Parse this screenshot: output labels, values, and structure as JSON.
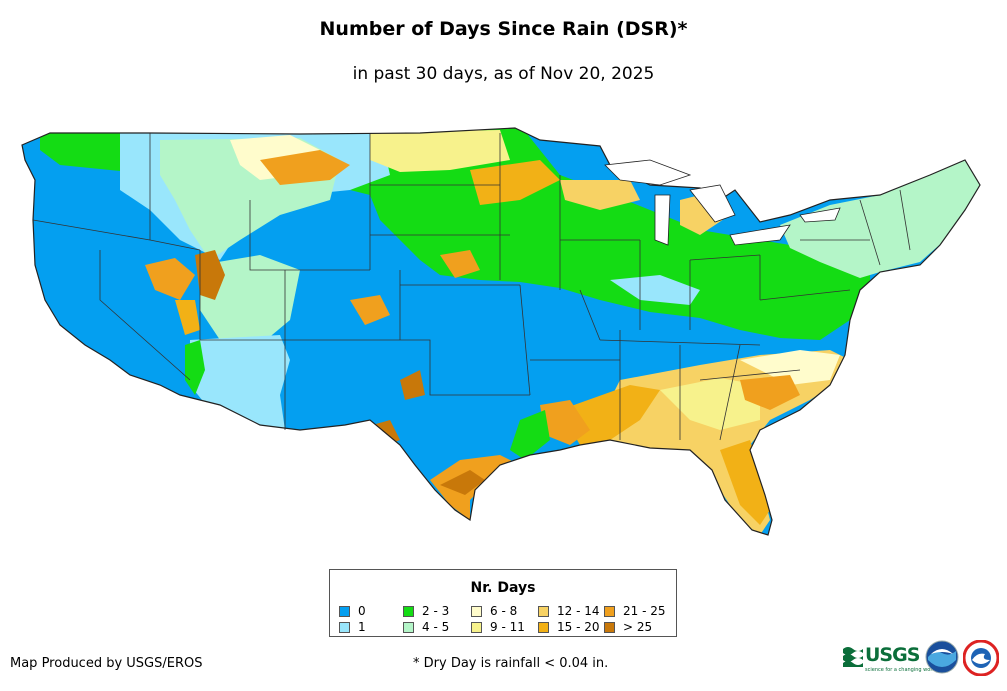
{
  "header": {
    "title": "Number of Days Since Rain (DSR)*",
    "subtitle": "in past 30 days, as of Nov 20, 2025"
  },
  "legend": {
    "title": "Nr. Days",
    "items": [
      {
        "label": "0",
        "color": "#049ff0"
      },
      {
        "label": "1",
        "color": "#99e6fc"
      },
      {
        "label": "2 - 3",
        "color": "#14dc14"
      },
      {
        "label": "4 - 5",
        "color": "#b4f5c8"
      },
      {
        "label": "6 - 8",
        "color": "#fffccc"
      },
      {
        "label": "9 - 11",
        "color": "#f7f28c"
      },
      {
        "label": "12 - 14",
        "color": "#f7d264"
      },
      {
        "label": "15 - 20",
        "color": "#f2b116"
      },
      {
        "label": "21 - 25",
        "color": "#f0a01e"
      },
      {
        "label": "> 25",
        "color": "#c8780a"
      }
    ]
  },
  "footer": {
    "credit": "Map Produced by USGS/EROS",
    "footnote": "* Dry Day is rainfall < 0.04 in."
  },
  "logos": {
    "usgs_text": "USGS",
    "usgs_tagline": "science for a changing world",
    "icons": [
      "usgs-logo",
      "noaa-logo",
      "nws-logo"
    ]
  }
}
